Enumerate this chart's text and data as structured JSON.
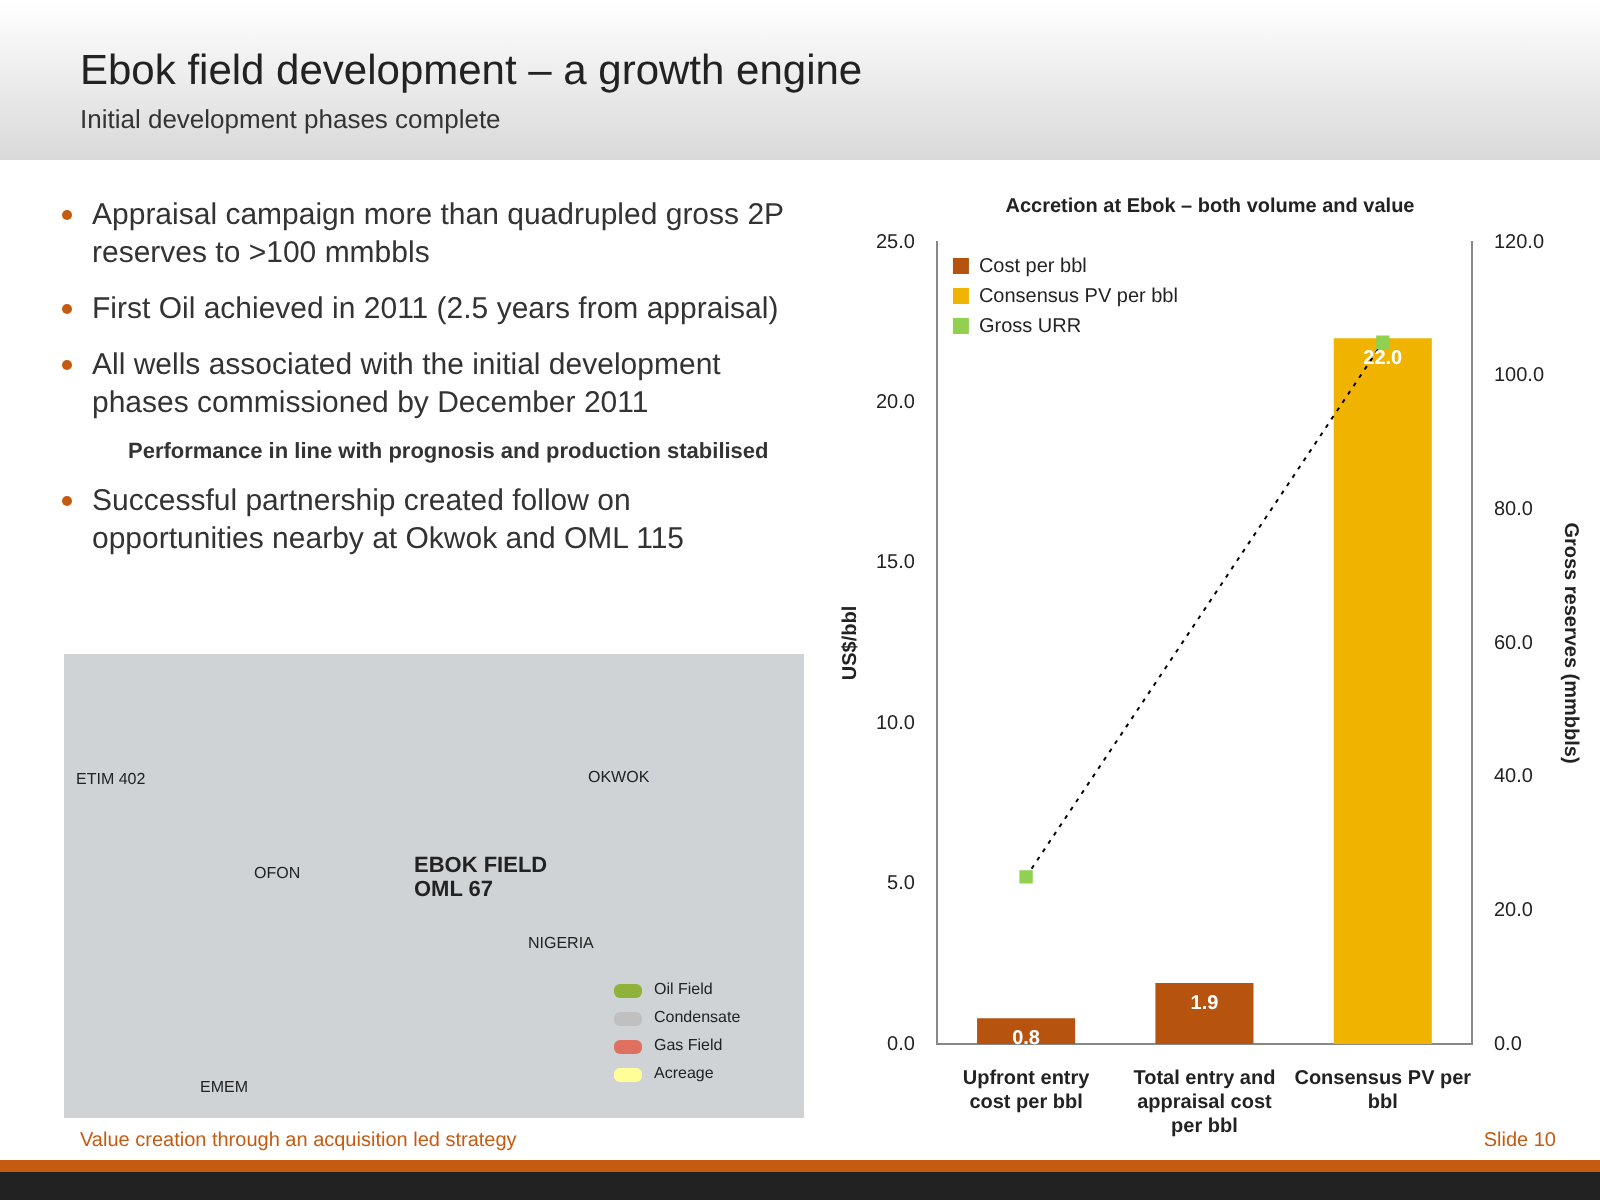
{
  "chart_data": {
    "type": "bar",
    "title": "Ebok field development – a growth engine",
    "subtitle": "Initial development phases complete",
    "categories": [
      "Upfront entry cost per bbl",
      "Total entry and appraisal cost per bbl",
      "Consensus PV per bbl"
    ],
    "stacked": true,
    "series": [
      {
        "name": "Cost per bbl",
        "color": "#b5530f",
        "values": [
          0.8,
          1.9,
          null
        ],
        "value_labels": [
          "0.8",
          "1.9",
          null
        ]
      },
      {
        "name": "Consensus PV per bbl",
        "color": "#f0b400",
        "values": [
          null,
          null,
          22.0
        ],
        "value_labels": [
          null,
          null,
          "22.0"
        ]
      },
      {
        "name": "Gross URR",
        "type": "line",
        "axis": "y2",
        "color": "#92d050",
        "values": [
          25,
          null,
          105
        ],
        "marker": "square",
        "line_style": "dotted"
      }
    ],
    "ylabel": "US$/bbl",
    "y2label": "Gross reserves (mmbbls)",
    "ylim": [
      0,
      25
    ],
    "yticks": [
      {
        "value": 0,
        "label": "0.0"
      },
      {
        "value": 5,
        "label": "5.0"
      },
      {
        "value": 10,
        "label": "10.0"
      },
      {
        "value": 15,
        "label": "15.0"
      },
      {
        "value": 20,
        "label": "20.0"
      },
      {
        "value": 25,
        "label": "25.0"
      }
    ],
    "y2lim": [
      0,
      120
    ],
    "y2ticks": [
      {
        "value": 0,
        "label": "0.0"
      },
      {
        "value": 20,
        "label": "20.0"
      },
      {
        "value": 40,
        "label": "40.0"
      },
      {
        "value": 60,
        "label": "60.0"
      },
      {
        "value": 80,
        "label": "80.0"
      },
      {
        "value": 100,
        "label": "100.0"
      },
      {
        "value": 120,
        "label": "120.0"
      }
    ],
    "legend": "top left",
    "grid": false,
    "annotations": [
      "Accretion at Ebok – both volume and value",
      "Appraisal campaign more than quadrupled gross 2P reserves to >100 mmbbls",
      "First Oil achieved in 2011 (2.5 years from appraisal)",
      "All wells associated with the initial development phases commissioned by December 2011",
      "Performance in line with prognosis and production stabilised",
      "Successful partnership created follow on opportunities nearby at Okwok and OML 115",
      "ETIM 402",
      "OFON",
      "OKWOK",
      "EBOK FIELD OML 67",
      "NIGERIA",
      "EMEM",
      "Oil Field",
      "Condensate",
      "Gas Field",
      "Acreage",
      "Value creation through an acquisition led strategy",
      "Slide 10"
    ]
  }
}
